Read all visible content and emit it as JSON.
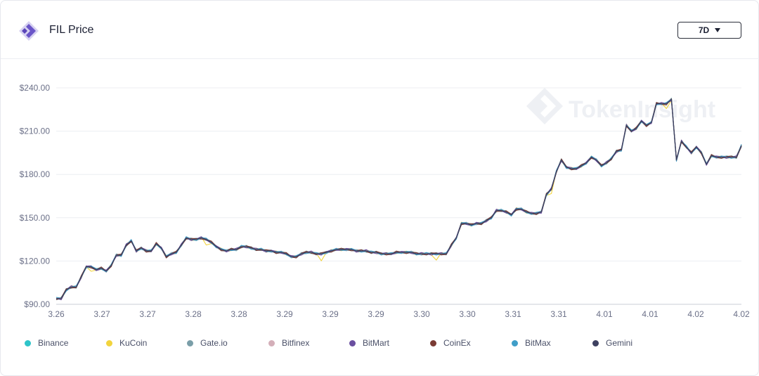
{
  "header": {
    "title": "FIL Price",
    "range_label": "7D",
    "logo_icon": "tokeninsight-logo-icon"
  },
  "watermark": {
    "text": "TokenInsight"
  },
  "colors": {
    "Binance": "#2ec4c9",
    "KuCoin": "#f2d43d",
    "Gate.io": "#7a9ea8",
    "Bitfinex": "#d4afb9",
    "BitMart": "#6a4fa0",
    "CoinEx": "#7a3b34",
    "BitMax": "#3f9ec8",
    "Gemini": "#3d4060"
  },
  "chart_data": {
    "type": "line",
    "ylim": [
      90,
      240
    ],
    "y_ticks": [
      90,
      120,
      150,
      180,
      210,
      240
    ],
    "y_tick_labels": [
      "$90.00",
      "$120.00",
      "$150.00",
      "$180.00",
      "$210.00",
      "$240.00"
    ],
    "x_tick_labels": [
      "3.26",
      "3.27",
      "3.27",
      "3.28",
      "3.28",
      "3.29",
      "3.29",
      "3.29",
      "3.30",
      "3.30",
      "3.31",
      "3.31",
      "4.01",
      "4.01",
      "4.02",
      "4.02"
    ],
    "grid": true,
    "legend_position": "bottom",
    "gemini_prices": [
      94,
      94,
      100,
      102,
      102,
      109,
      116,
      116,
      114,
      115,
      113,
      117,
      124,
      124,
      131,
      134,
      127,
      129,
      127,
      127,
      132,
      129,
      123,
      125,
      126,
      131,
      136,
      135,
      135,
      136,
      135,
      133,
      130,
      128,
      127,
      128,
      128,
      130,
      130,
      129,
      128,
      128,
      127,
      127,
      126,
      126,
      125,
      123,
      123,
      125,
      126,
      126,
      125,
      125,
      126,
      127,
      128,
      128,
      128,
      128,
      127,
      127,
      127,
      126,
      126,
      125,
      125,
      125,
      126,
      126,
      126,
      126,
      125,
      125,
      125,
      125,
      125,
      125,
      125,
      131,
      136,
      146,
      146,
      145,
      146,
      146,
      148,
      150,
      155,
      155,
      154,
      152,
      156,
      156,
      154,
      153,
      153,
      154,
      166,
      170,
      182,
      190,
      185,
      184,
      184,
      186,
      188,
      192,
      190,
      186,
      188,
      191,
      196,
      197,
      214,
      210,
      212,
      217,
      214,
      216,
      229,
      229,
      229,
      232,
      190,
      203,
      199,
      195,
      199,
      195,
      187,
      193,
      192,
      192,
      192,
      192,
      192,
      200
    ],
    "series": [
      {
        "name": "Binance",
        "offset": 0
      },
      {
        "name": "KuCoin",
        "offset": 1
      },
      {
        "name": "Gate.io",
        "offset": 2
      },
      {
        "name": "Bitfinex",
        "offset": 3
      },
      {
        "name": "BitMart",
        "offset": 4
      },
      {
        "name": "CoinEx",
        "offset": 5
      },
      {
        "name": "BitMax",
        "offset": 6
      },
      {
        "name": "Gemini",
        "offset": 7
      }
    ]
  }
}
